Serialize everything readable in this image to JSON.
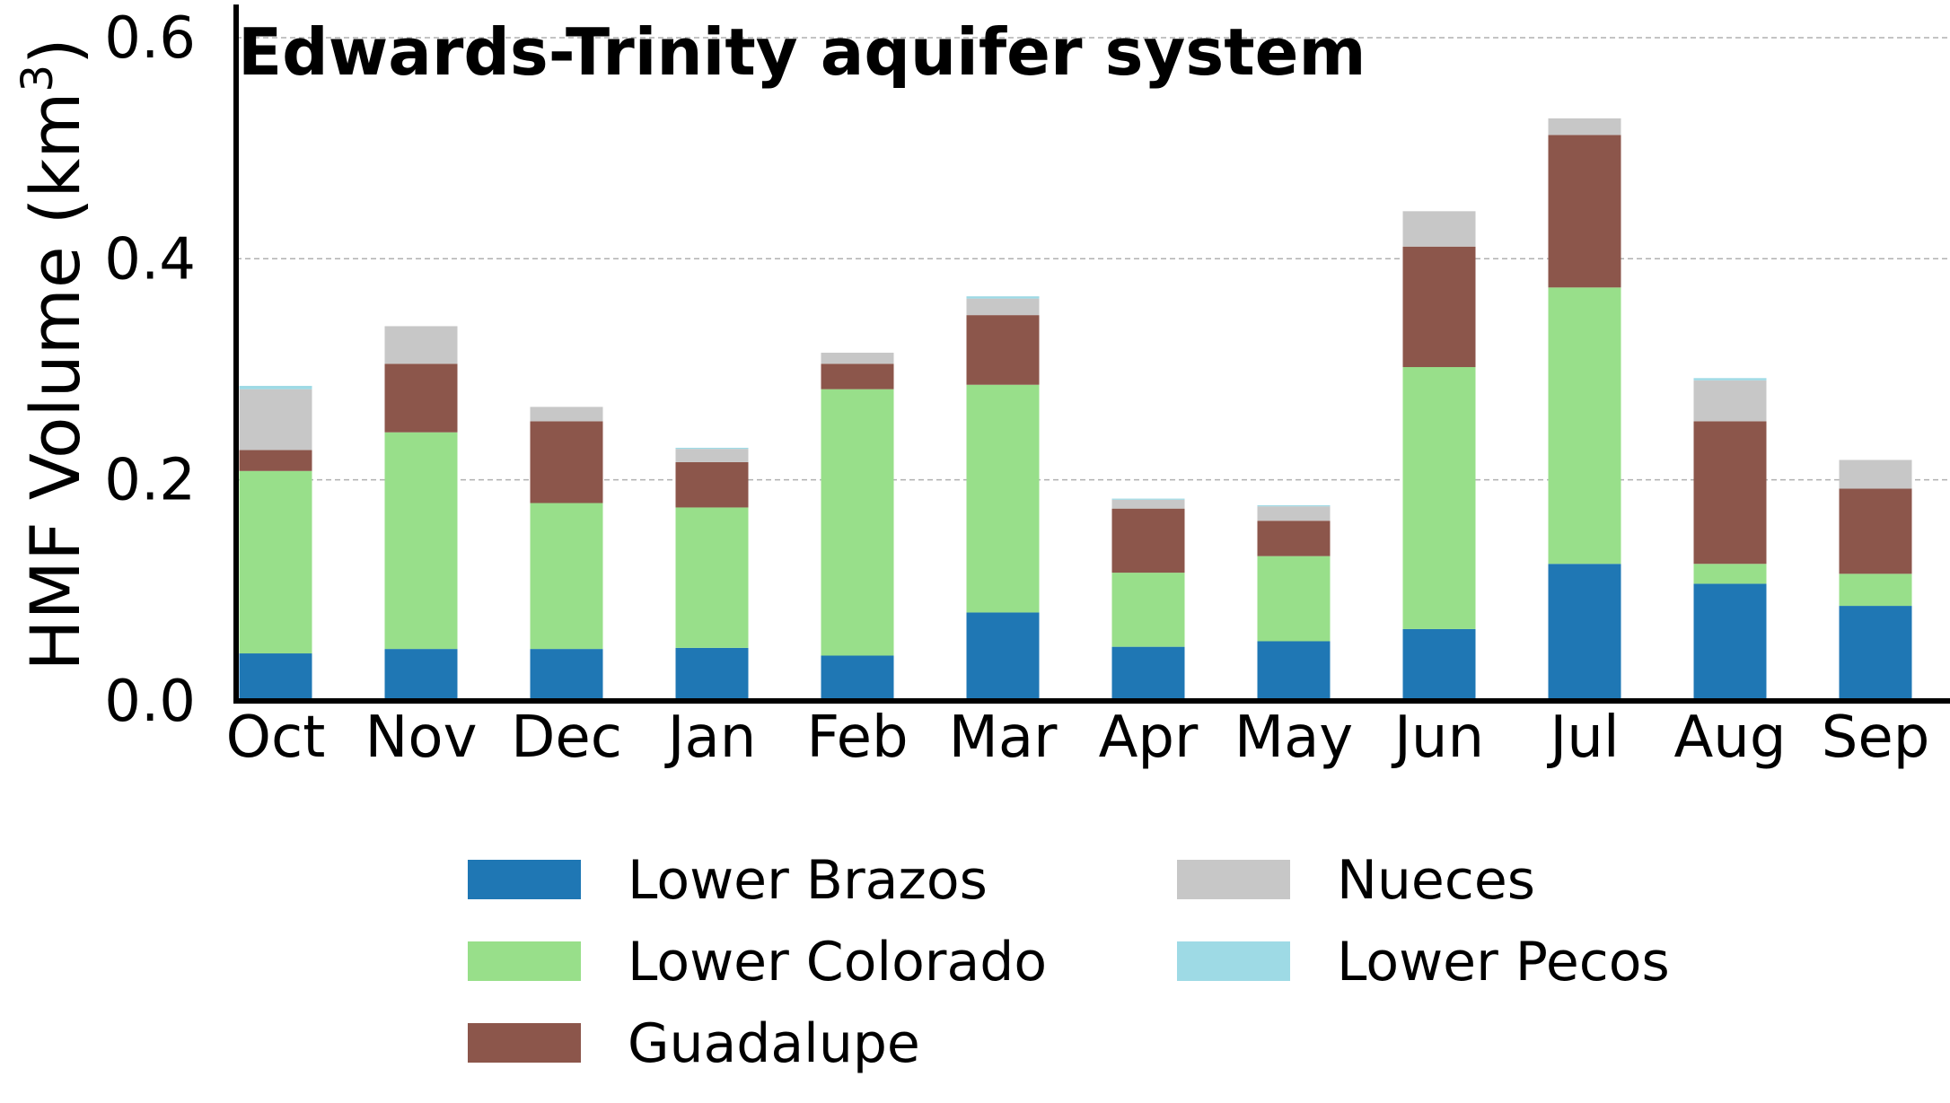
{
  "chart_data": {
    "type": "bar",
    "stacked": true,
    "title": "Edwards-Trinity aquifer system",
    "ylabel": "HMF Volume (km",
    "ylabel_sup": "3",
    "ylabel_close": ")",
    "xlabel": "",
    "ylim": [
      0,
      0.63
    ],
    "yticks": [
      0.0,
      0.2,
      0.4,
      0.6
    ],
    "ytick_labels": [
      "0.0",
      "0.2",
      "0.4",
      "0.6"
    ],
    "grid": "horizontal-dashed",
    "legend_placement": "bottom",
    "categories": [
      "Oct",
      "Nov",
      "Dec",
      "Jan",
      "Feb",
      "Mar",
      "Apr",
      "May",
      "Jun",
      "Jul",
      "Aug",
      "Sep"
    ],
    "series": [
      {
        "name": "Lower Brazos",
        "color": "#1f77b4",
        "values": [
          0.043,
          0.047,
          0.047,
          0.048,
          0.041,
          0.08,
          0.049,
          0.054,
          0.065,
          0.124,
          0.106,
          0.086
        ]
      },
      {
        "name": "Lower Colorado",
        "color": "#98df8a",
        "values": [
          0.165,
          0.196,
          0.132,
          0.127,
          0.241,
          0.206,
          0.067,
          0.077,
          0.237,
          0.25,
          0.018,
          0.029
        ]
      },
      {
        "name": "Guadalupe",
        "color": "#8c564b",
        "values": [
          0.019,
          0.062,
          0.074,
          0.041,
          0.023,
          0.063,
          0.058,
          0.032,
          0.109,
          0.138,
          0.129,
          0.077
        ]
      },
      {
        "name": "Nueces",
        "color": "#c7c7c7",
        "values": [
          0.055,
          0.034,
          0.013,
          0.012,
          0.01,
          0.015,
          0.008,
          0.013,
          0.032,
          0.015,
          0.037,
          0.026
        ]
      },
      {
        "name": "Lower Pecos",
        "color": "#9edae5",
        "values": [
          0.003,
          0.0,
          0.0,
          0.001,
          0.0,
          0.002,
          0.001,
          0.001,
          0.0,
          0.0,
          0.002,
          0.0
        ]
      }
    ]
  }
}
